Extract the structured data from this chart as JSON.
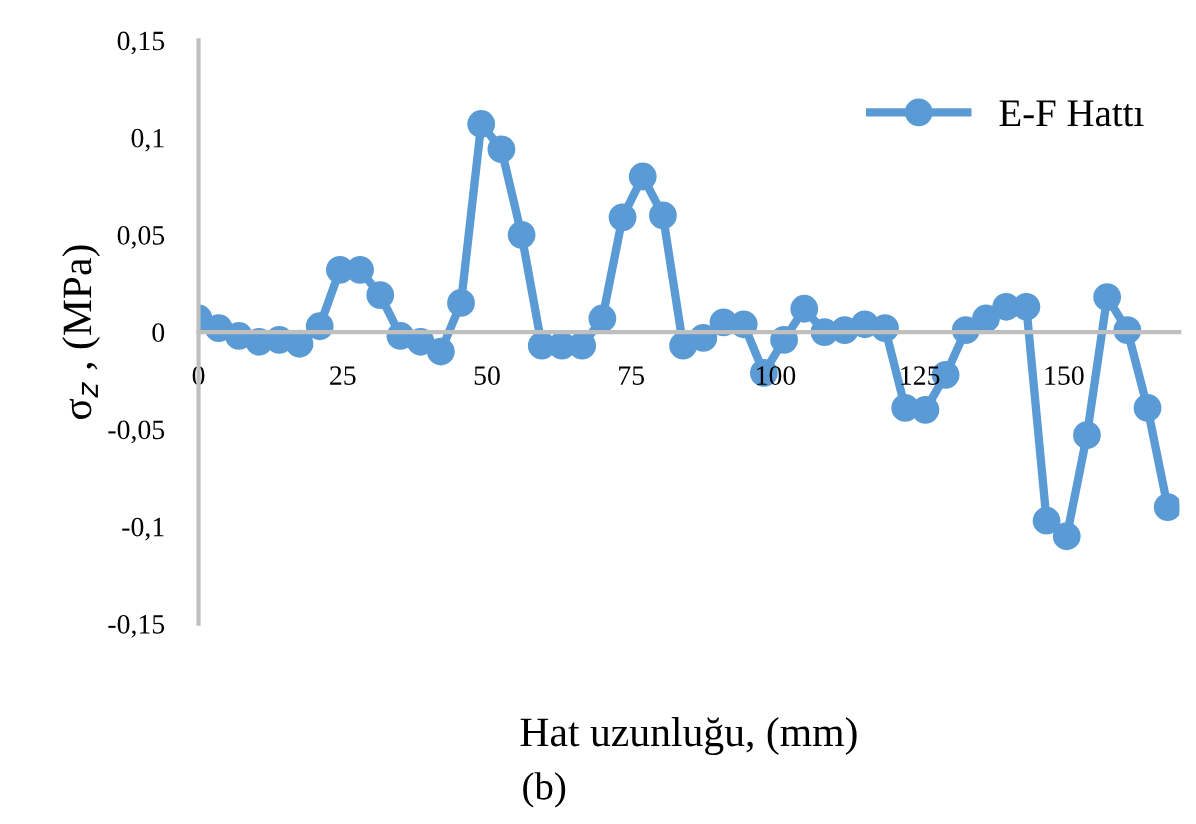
{
  "chart_data": {
    "type": "line",
    "xlabel": "Hat uzunluğu, (mm)",
    "ylabel": "σ$_{z}$ , (MPa)",
    "annotations": [
      "(b)"
    ],
    "x": [
      0,
      3.5,
      7,
      10.5,
      14,
      17.5,
      21,
      24.5,
      28,
      31.5,
      35,
      38.5,
      42,
      45.5,
      49,
      52.5,
      56,
      59.5,
      63,
      66.5,
      70,
      73.5,
      77,
      80.5,
      84,
      87.5,
      91,
      94.5,
      98,
      101.5,
      105,
      108.5,
      112,
      115.5,
      119,
      122.5,
      126,
      129.5,
      133,
      136.5,
      140,
      143.5,
      147,
      150.5,
      154,
      157.5,
      161,
      164.5,
      168
    ],
    "series": [
      {
        "name": "E-F Hattı",
        "color": "#5b9bd5",
        "values": [
          0.007,
          0.002,
          -0.002,
          -0.005,
          -0.004,
          -0.006,
          0.003,
          0.032,
          0.032,
          0.019,
          -0.002,
          -0.005,
          -0.01,
          0.015,
          0.107,
          0.094,
          0.05,
          -0.007,
          -0.007,
          -0.007,
          0.007,
          0.059,
          0.08,
          0.06,
          -0.007,
          -0.003,
          0.005,
          0.004,
          -0.021,
          -0.004,
          0.012,
          0,
          0.001,
          0.004,
          0.002,
          -0.039,
          -0.04,
          -0.022,
          0.001,
          0.007,
          0.013,
          0.013,
          -0.097,
          -0.105,
          -0.053,
          0.018,
          0.001,
          -0.039,
          -0.09
        ]
      }
    ],
    "xlim": [
      0,
      170
    ],
    "xticks": [
      0,
      25,
      50,
      75,
      100,
      125,
      150
    ],
    "ylim": [
      -0.15,
      0.15
    ],
    "yticks": [
      {
        "value": -0.15,
        "label": "-0,15"
      },
      {
        "value": -0.1,
        "label": "-0,1"
      },
      {
        "value": -0.05,
        "label": "-0,05"
      },
      0,
      {
        "value": 0.05,
        "label": "0,05"
      },
      {
        "value": 0.1,
        "label": "0,1"
      },
      {
        "value": 0.15,
        "label": "0,15"
      }
    ],
    "grid": false,
    "legend": "top right",
    "marker": "circle",
    "line_style": "solid"
  }
}
